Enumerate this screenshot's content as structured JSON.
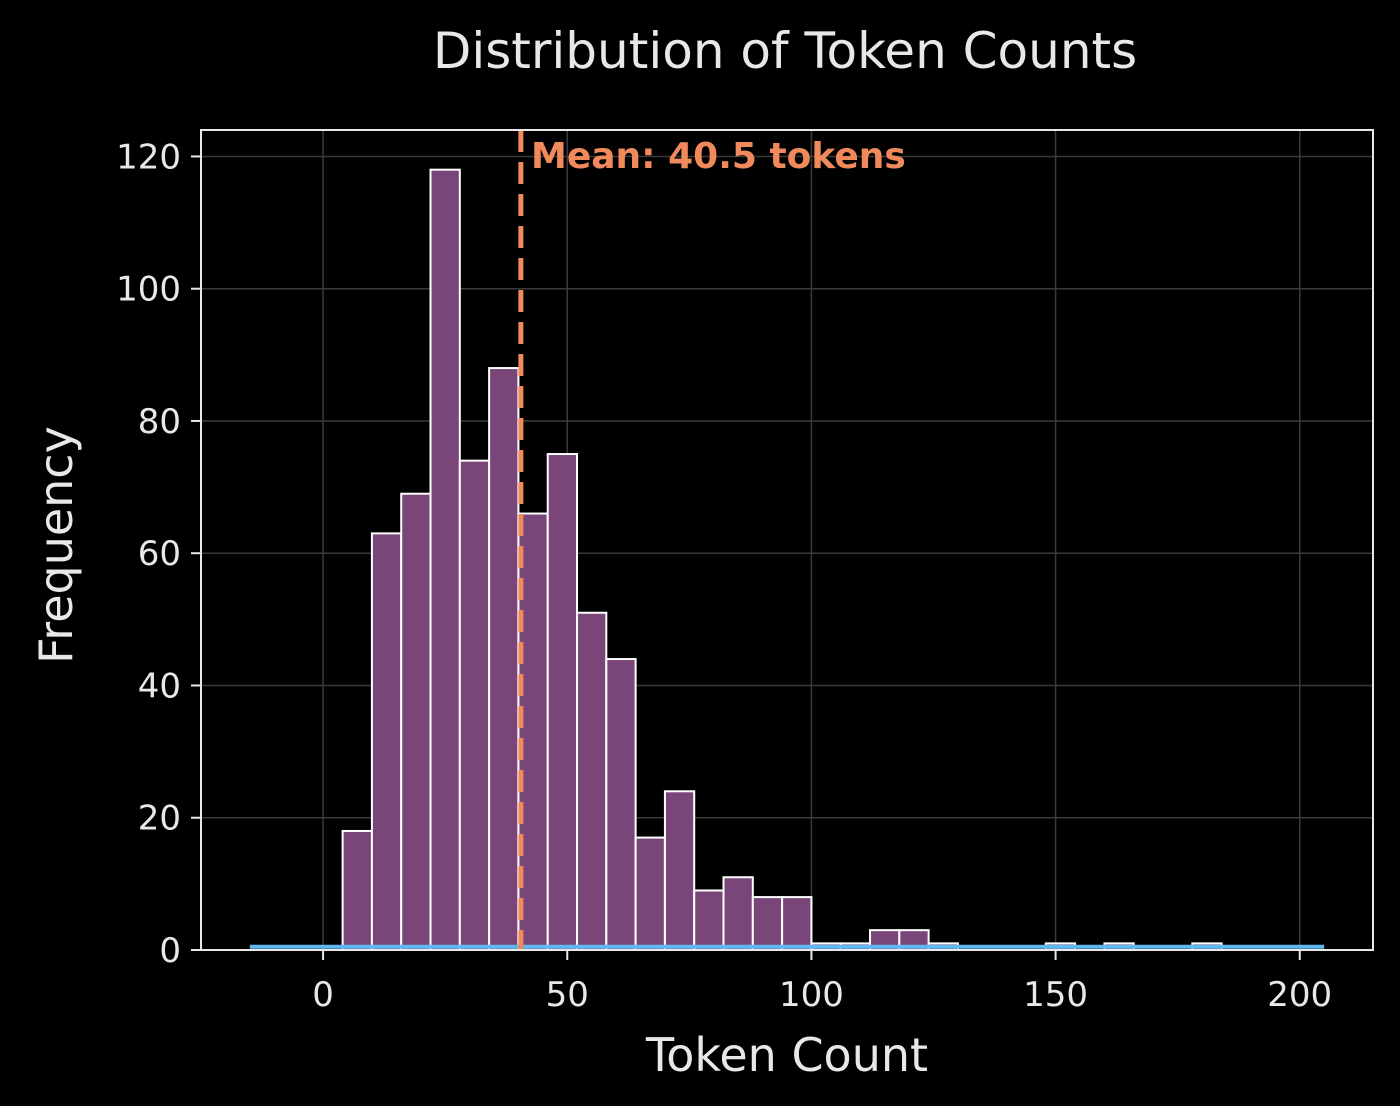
{
  "chart_data": {
    "type": "bar",
    "title": "Distribution of Token Counts",
    "xlabel": "Token Count",
    "ylabel": "Frequency",
    "xlim": [
      -25,
      215
    ],
    "ylim": [
      0,
      124
    ],
    "xticks": [
      0,
      50,
      100,
      150,
      200
    ],
    "yticks": [
      0,
      20,
      40,
      60,
      80,
      100,
      120
    ],
    "grid": true,
    "bin_width": 6,
    "bins": [
      {
        "x0": 4,
        "x1": 10,
        "count": 18
      },
      {
        "x0": 10,
        "x1": 16,
        "count": 63
      },
      {
        "x0": 16,
        "x1": 22,
        "count": 69
      },
      {
        "x0": 22,
        "x1": 28,
        "count": 118
      },
      {
        "x0": 28,
        "x1": 34,
        "count": 74
      },
      {
        "x0": 34,
        "x1": 40,
        "count": 88
      },
      {
        "x0": 40,
        "x1": 46,
        "count": 66
      },
      {
        "x0": 46,
        "x1": 52,
        "count": 75
      },
      {
        "x0": 52,
        "x1": 58,
        "count": 51
      },
      {
        "x0": 58,
        "x1": 64,
        "count": 44
      },
      {
        "x0": 64,
        "x1": 70,
        "count": 17
      },
      {
        "x0": 70,
        "x1": 76,
        "count": 24
      },
      {
        "x0": 76,
        "x1": 82,
        "count": 9
      },
      {
        "x0": 82,
        "x1": 88,
        "count": 11
      },
      {
        "x0": 88,
        "x1": 94,
        "count": 8
      },
      {
        "x0": 94,
        "x1": 100,
        "count": 8
      },
      {
        "x0": 100,
        "x1": 106,
        "count": 1
      },
      {
        "x0": 106,
        "x1": 112,
        "count": 1
      },
      {
        "x0": 112,
        "x1": 118,
        "count": 3
      },
      {
        "x0": 118,
        "x1": 124,
        "count": 3
      },
      {
        "x0": 124,
        "x1": 130,
        "count": 1
      },
      {
        "x0": 148,
        "x1": 154,
        "count": 1
      },
      {
        "x0": 160,
        "x1": 166,
        "count": 1
      },
      {
        "x0": 178,
        "x1": 184,
        "count": 1
      }
    ],
    "kde_baseline": {
      "x": [
        -15,
        205
      ],
      "y": 0.5
    },
    "mean_line": {
      "x": 40.5,
      "label": "Mean: 40.5 tokens"
    },
    "colors": {
      "background": "#000000",
      "bar_fill": "#7a4679",
      "bar_edge": "#ffffff",
      "mean_line": "#f08a5d",
      "kde_line": "#5fb8f0",
      "text": "#e8e8e8",
      "axes_edge": "#e8e8e8",
      "grid": "#3a3a3a"
    }
  }
}
